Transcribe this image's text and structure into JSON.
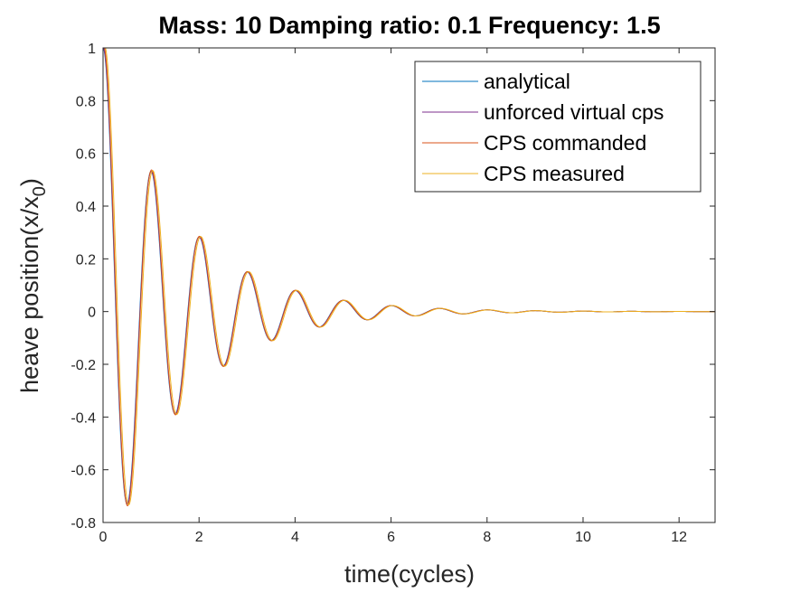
{
  "chart_data": {
    "type": "line",
    "title": "Mass: 10 Damping ratio: 0.1 Frequency: 1.5",
    "xlabel": "time(cycles)",
    "ylabel_main": "heave position(x/x",
    "ylabel_sub": "0",
    "ylabel_close": ")",
    "xlim": [
      0,
      12.75
    ],
    "ylim": [
      -0.8,
      1.0
    ],
    "x_ticks": [
      0,
      2,
      4,
      6,
      8,
      10,
      12
    ],
    "y_ticks": [
      -0.8,
      -0.6,
      -0.4,
      -0.2,
      0,
      0.2,
      0.4,
      0.6,
      0.8,
      1
    ],
    "x_tick_labels": [
      "0",
      "2",
      "4",
      "6",
      "8",
      "10",
      "12"
    ],
    "y_tick_labels": [
      "-0.8",
      "-0.6",
      "-0.4",
      "-0.2",
      "0",
      "0.2",
      "0.4",
      "0.6",
      "0.8",
      "1"
    ],
    "grid": false,
    "legend_position": "top-right",
    "series": [
      {
        "name": "analytical",
        "color": "#0072BD",
        "phase": 0.0,
        "amp": 1.0
      },
      {
        "name": "unforced virtual cps",
        "color": "#7E2F8E",
        "phase": 0.005,
        "amp": 1.0
      },
      {
        "name": "CPS commanded",
        "color": "#D95319",
        "phase": 0.01,
        "amp": 1.01
      },
      {
        "name": "CPS measured",
        "color": "#EDB120",
        "phase": 0.035,
        "amp": 1.005
      }
    ],
    "x": [
      0,
      0.5,
      1,
      1.5,
      2,
      2.5,
      3,
      3.5,
      4,
      4.5,
      5,
      5.5,
      6,
      6.5,
      7,
      7.5,
      8,
      8.5,
      9,
      9.5,
      10,
      10.5,
      11,
      11.5,
      12,
      12.75
    ],
    "y": [
      1,
      -0.73,
      0.53,
      -0.39,
      0.29,
      -0.21,
      0.15,
      -0.11,
      0.08,
      -0.06,
      0.045,
      -0.032,
      0.024,
      -0.017,
      0.013,
      -0.009,
      0.007,
      -0.005,
      0.004,
      -0.003,
      0.002,
      -0.0015,
      0.001,
      -0.0008,
      0.0006,
      0
    ]
  }
}
